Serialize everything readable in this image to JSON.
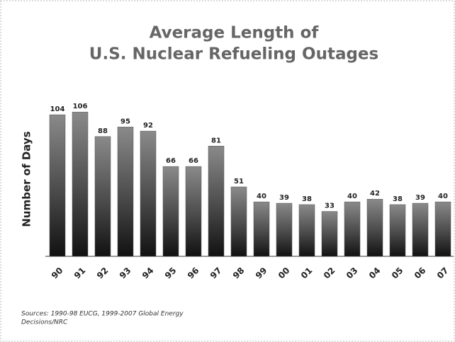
{
  "chart_data": {
    "type": "bar",
    "title_lines": [
      "Average Length of",
      "U.S. Nuclear Refueling Outages"
    ],
    "y_label": "Number of Days",
    "categories": [
      "90",
      "91",
      "92",
      "93",
      "94",
      "95",
      "96",
      "97",
      "98",
      "99",
      "00",
      "01",
      "02",
      "03",
      "04",
      "05",
      "06",
      "07"
    ],
    "values": [
      104,
      106,
      88,
      95,
      92,
      66,
      66,
      81,
      51,
      40,
      39,
      38,
      33,
      40,
      42,
      38,
      39,
      40
    ],
    "color": "#555555",
    "ylim": [
      0,
      110
    ],
    "grid": false,
    "source_lines": [
      "Sources:  1990-98 EUCG, 1999-2007 Global Energy",
      "Decisions/NRC"
    ]
  }
}
